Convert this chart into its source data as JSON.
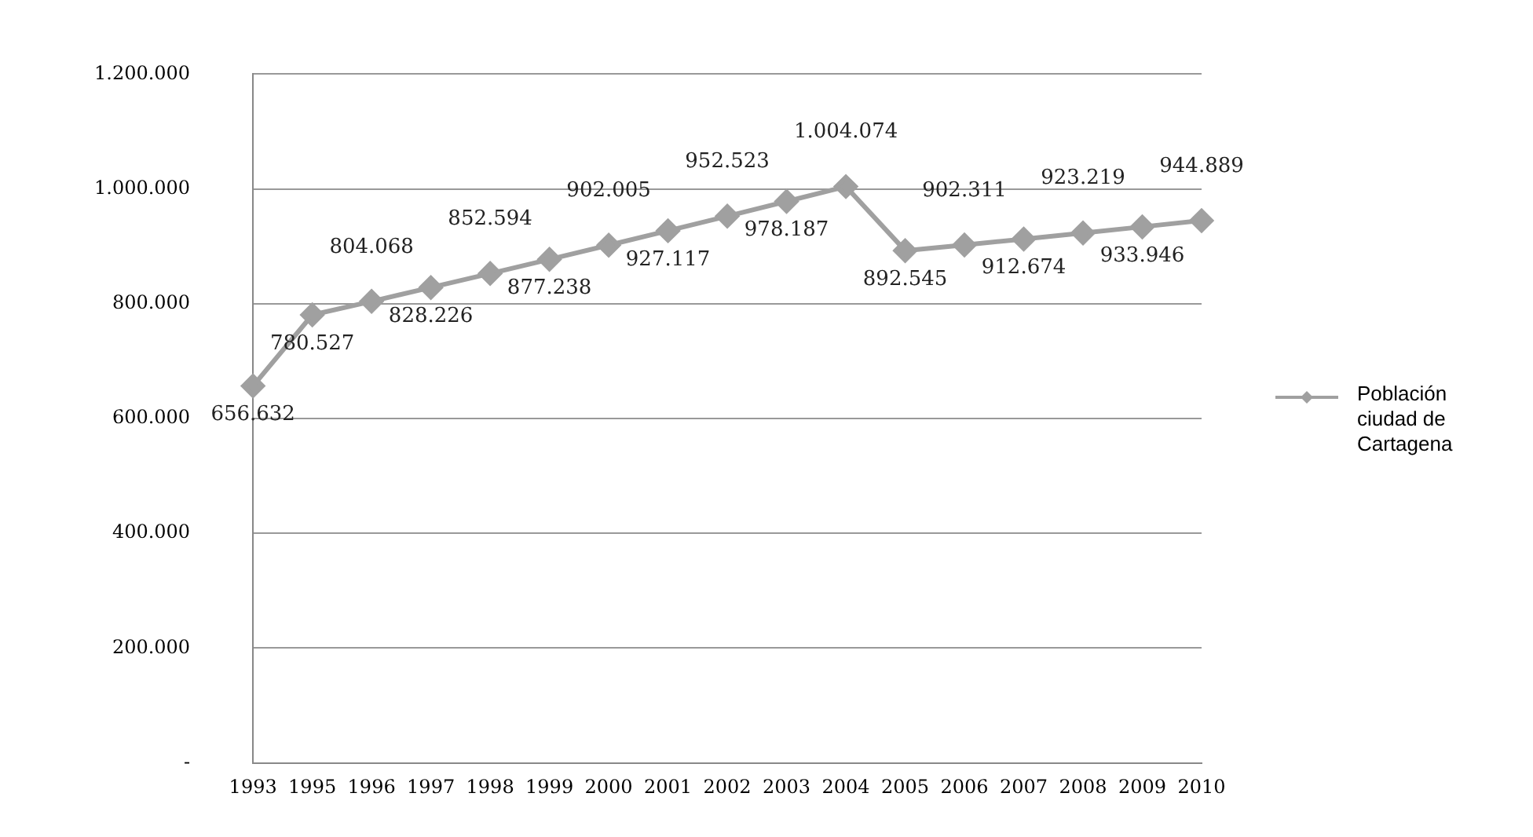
{
  "chart_data": {
    "type": "line",
    "categories": [
      "1993",
      "1995",
      "1996",
      "1997",
      "1998",
      "1999",
      "2000",
      "2001",
      "2002",
      "2003",
      "2004",
      "2005",
      "2006",
      "2007",
      "2008",
      "2009",
      "2010"
    ],
    "series": [
      {
        "name": "Población ciudad de Cartagena",
        "color": "#a0a0a0",
        "values": [
          656632,
          780527,
          804068,
          828226,
          852594,
          877238,
          902005,
          927117,
          952523,
          978187,
          1004074,
          892545,
          902311,
          912674,
          923219,
          933946,
          944889
        ],
        "value_labels": [
          "656.632",
          "780.527",
          "804.068",
          "828.226",
          "852.594",
          "877.238",
          "902.005",
          "927.117",
          "952.523",
          "978.187",
          "1.004.074",
          "892.545",
          "902.311",
          "912.674",
          "923.219",
          "933.946",
          "944.889"
        ]
      }
    ],
    "ylim": [
      0,
      1200000
    ],
    "yticks": [
      {
        "value": 0,
        "label": "-"
      },
      {
        "value": 200000,
        "label": "200.000"
      },
      {
        "value": 400000,
        "label": "400.000"
      },
      {
        "value": 600000,
        "label": "600.000"
      },
      {
        "value": 800000,
        "label": "800.000"
      },
      {
        "value": 1000000,
        "label": "1.000.000"
      },
      {
        "value": 1200000,
        "label": "1.200.000"
      }
    ],
    "grid": "y",
    "legend": "right",
    "marker": "diamond",
    "line_style": "solid"
  }
}
